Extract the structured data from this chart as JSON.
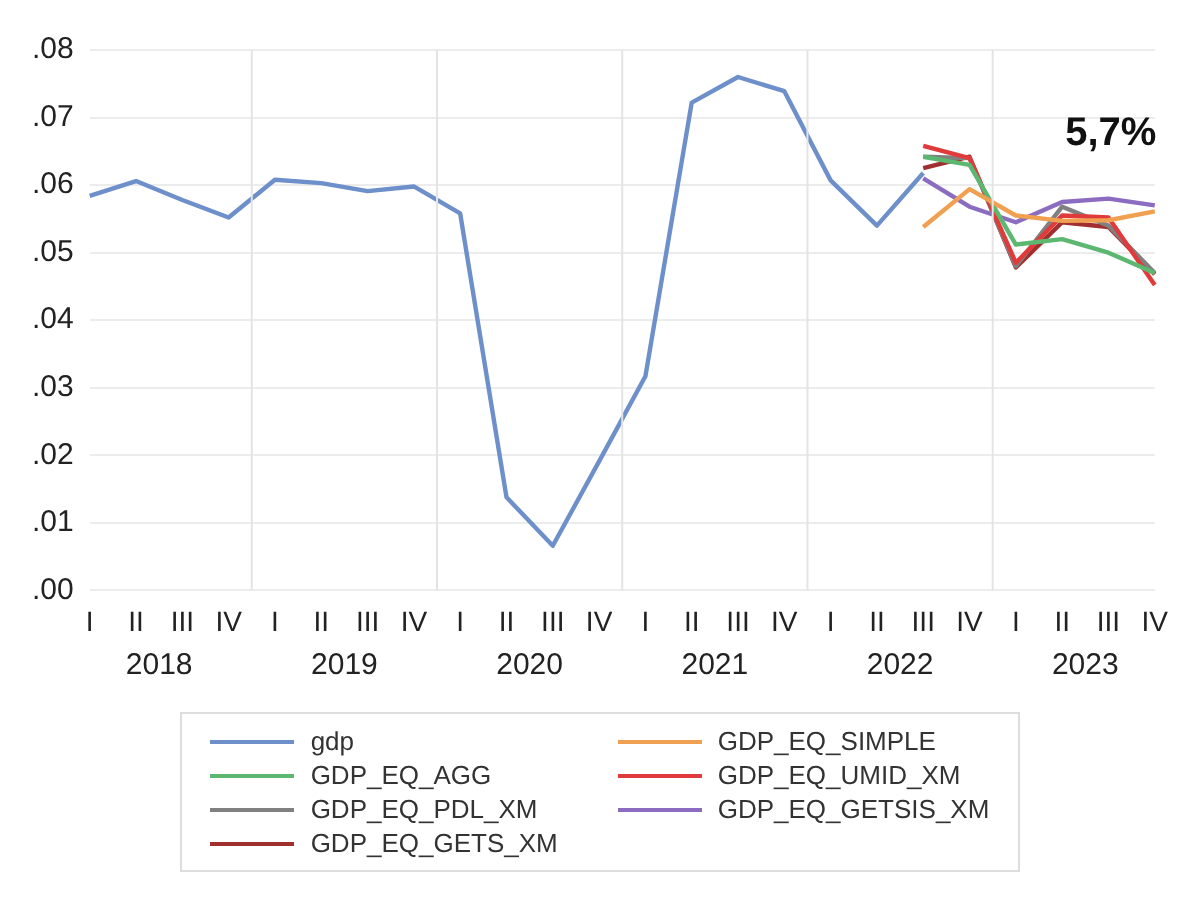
{
  "chart_data": {
    "type": "line",
    "categories": [
      "I",
      "II",
      "III",
      "IV",
      "I",
      "II",
      "III",
      "IV",
      "I",
      "II",
      "III",
      "IV",
      "I",
      "II",
      "III",
      "IV",
      "I",
      "II",
      "III",
      "IV",
      "I",
      "II",
      "III",
      "IV"
    ],
    "annotations": [
      "2018",
      "2019",
      "2020",
      "2021",
      "2022",
      "2023",
      "5,7%"
    ],
    "series": [
      {
        "name": "gdp",
        "color": "#6d8fca",
        "values": [
          0.0584,
          0.0606,
          0.0578,
          0.0552,
          0.0608,
          0.0603,
          0.0591,
          0.0598,
          0.0558,
          0.0138,
          0.0066,
          0.0191,
          0.0317,
          0.0722,
          0.076,
          0.0739,
          0.0607,
          0.054,
          0.0618,
          null,
          null,
          null,
          null,
          null
        ]
      },
      {
        "name": "GDP_EQ_SIMPLE",
        "color": "#f0a050",
        "values": [
          null,
          null,
          null,
          null,
          null,
          null,
          null,
          null,
          null,
          null,
          null,
          null,
          null,
          null,
          null,
          null,
          null,
          null,
          0.0538,
          0.0594,
          0.0555,
          0.0547,
          0.0548,
          0.0561
        ]
      },
      {
        "name": "GDP_EQ_AGG",
        "color": "#5cb870",
        "values": [
          null,
          null,
          null,
          null,
          null,
          null,
          null,
          null,
          null,
          null,
          null,
          null,
          null,
          null,
          null,
          null,
          null,
          null,
          0.0642,
          0.063,
          0.0512,
          0.052,
          0.05,
          0.047
        ]
      },
      {
        "name": "GDP_EQ_UMID_XM",
        "color": "#e03a3a",
        "values": [
          null,
          null,
          null,
          null,
          null,
          null,
          null,
          null,
          null,
          null,
          null,
          null,
          null,
          null,
          null,
          null,
          null,
          null,
          0.0658,
          0.064,
          0.0485,
          0.0555,
          0.0552,
          0.0452
        ]
      },
      {
        "name": "GDP_EQ_PDL_XM",
        "color": "#808080",
        "values": [
          null,
          null,
          null,
          null,
          null,
          null,
          null,
          null,
          null,
          null,
          null,
          null,
          null,
          null,
          null,
          null,
          null,
          null,
          0.0642,
          0.064,
          0.048,
          0.0568,
          0.054,
          0.047
        ]
      },
      {
        "name": "GDP_EQ_GETSIS_XM",
        "color": "#8c6cc0",
        "values": [
          null,
          null,
          null,
          null,
          null,
          null,
          null,
          null,
          null,
          null,
          null,
          null,
          null,
          null,
          null,
          null,
          null,
          null,
          0.061,
          0.0568,
          0.0545,
          0.0575,
          0.058,
          0.057
        ]
      },
      {
        "name": "GDP_EQ_GETS_XM",
        "color": "#a03030",
        "values": [
          null,
          null,
          null,
          null,
          null,
          null,
          null,
          null,
          null,
          null,
          null,
          null,
          null,
          null,
          null,
          null,
          null,
          null,
          0.0625,
          0.0642,
          0.0478,
          0.0545,
          0.0538,
          0.0468
        ]
      }
    ],
    "ylim": [
      0,
      0.08
    ],
    "yticks": [
      {
        "value": 0,
        "label": ".00"
      },
      {
        "value": 0.01,
        "label": ".01"
      },
      {
        "value": 0.02,
        "label": ".02"
      },
      {
        "value": 0.03,
        "label": ".03"
      },
      {
        "value": 0.04,
        "label": ".04"
      },
      {
        "value": 0.05,
        "label": ".05"
      },
      {
        "value": 0.06,
        "label": ".06"
      },
      {
        "value": 0.07,
        "label": ".07"
      },
      {
        "value": 0.08,
        "label": ".08"
      }
    ],
    "grid": "y",
    "legend": "bottom",
    "marker": "none",
    "line_style": "solid"
  }
}
